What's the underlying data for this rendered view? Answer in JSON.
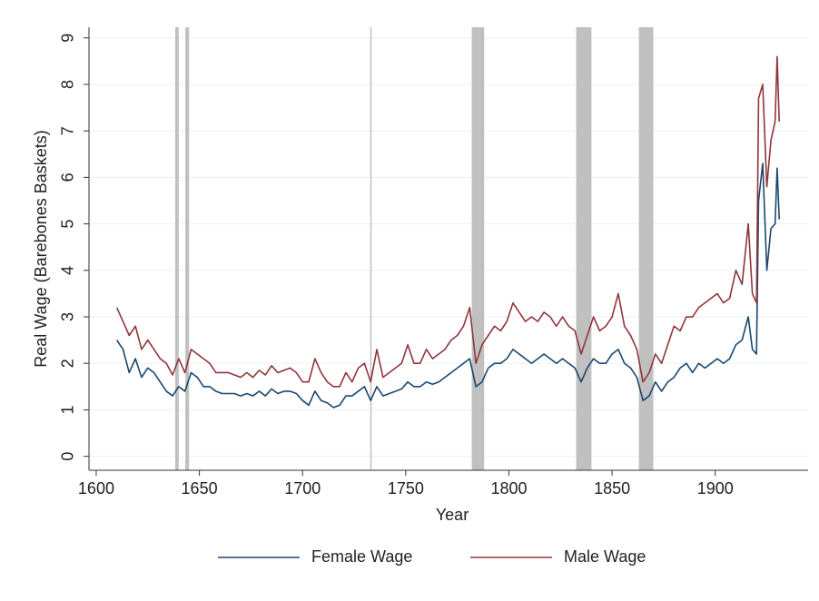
{
  "chart_data": {
    "type": "line",
    "xlabel": "Year",
    "ylabel": "Real Wage (Barebones Baskets)",
    "x": [
      1610,
      1613,
      1616,
      1619,
      1622,
      1625,
      1628,
      1631,
      1634,
      1637,
      1640,
      1643,
      1646,
      1649,
      1652,
      1655,
      1658,
      1661,
      1664,
      1667,
      1670,
      1673,
      1676,
      1679,
      1682,
      1685,
      1688,
      1691,
      1694,
      1697,
      1700,
      1703,
      1706,
      1709,
      1712,
      1715,
      1718,
      1721,
      1724,
      1727,
      1730,
      1733,
      1736,
      1739,
      1742,
      1745,
      1748,
      1751,
      1754,
      1757,
      1760,
      1763,
      1766,
      1769,
      1772,
      1775,
      1778,
      1781,
      1784,
      1787,
      1790,
      1793,
      1796,
      1799,
      1802,
      1805,
      1808,
      1811,
      1814,
      1817,
      1820,
      1823,
      1826,
      1829,
      1832,
      1835,
      1838,
      1841,
      1844,
      1847,
      1850,
      1853,
      1856,
      1859,
      1862,
      1865,
      1868,
      1871,
      1874,
      1877,
      1880,
      1883,
      1886,
      1889,
      1892,
      1895,
      1898,
      1901,
      1904,
      1907,
      1910,
      1913,
      1916,
      1918,
      1920,
      1921,
      1923,
      1925,
      1927,
      1929,
      1930,
      1931
    ],
    "series": [
      {
        "name": "Female Wage",
        "color": "#1a476f",
        "values": [
          2.5,
          2.3,
          1.8,
          2.1,
          1.7,
          1.9,
          1.8,
          1.6,
          1.4,
          1.3,
          1.5,
          1.4,
          1.8,
          1.7,
          1.5,
          1.5,
          1.4,
          1.35,
          1.35,
          1.35,
          1.3,
          1.35,
          1.3,
          1.4,
          1.3,
          1.45,
          1.35,
          1.4,
          1.4,
          1.35,
          1.2,
          1.1,
          1.4,
          1.2,
          1.15,
          1.05,
          1.1,
          1.3,
          1.3,
          1.4,
          1.5,
          1.2,
          1.5,
          1.3,
          1.35,
          1.4,
          1.45,
          1.6,
          1.5,
          1.5,
          1.6,
          1.55,
          1.6,
          1.7,
          1.8,
          1.9,
          2.0,
          2.1,
          1.5,
          1.6,
          1.9,
          2.0,
          2.0,
          2.1,
          2.3,
          2.2,
          2.1,
          2.0,
          2.1,
          2.2,
          2.1,
          2.0,
          2.1,
          2.0,
          1.9,
          1.6,
          1.9,
          2.1,
          2.0,
          2.0,
          2.2,
          2.3,
          2.0,
          1.9,
          1.7,
          1.2,
          1.3,
          1.6,
          1.4,
          1.6,
          1.7,
          1.9,
          2.0,
          1.8,
          2.0,
          1.9,
          2.0,
          2.1,
          2.0,
          2.1,
          2.4,
          2.5,
          3.0,
          2.3,
          2.2,
          5.5,
          6.3,
          4.0,
          4.9,
          5.0,
          6.2,
          5.1
        ]
      },
      {
        "name": "Male Wage",
        "color": "#90353b",
        "values": [
          3.2,
          2.9,
          2.6,
          2.8,
          2.3,
          2.5,
          2.3,
          2.1,
          2.0,
          1.75,
          2.1,
          1.8,
          2.3,
          2.2,
          2.1,
          2.0,
          1.8,
          1.8,
          1.8,
          1.75,
          1.7,
          1.8,
          1.7,
          1.85,
          1.75,
          1.95,
          1.8,
          1.85,
          1.9,
          1.8,
          1.6,
          1.6,
          2.1,
          1.8,
          1.6,
          1.5,
          1.5,
          1.8,
          1.6,
          1.9,
          2.0,
          1.6,
          2.3,
          1.7,
          1.8,
          1.9,
          2.0,
          2.4,
          2.0,
          2.0,
          2.3,
          2.1,
          2.2,
          2.3,
          2.5,
          2.6,
          2.8,
          3.2,
          2.0,
          2.4,
          2.6,
          2.8,
          2.7,
          2.9,
          3.3,
          3.1,
          2.9,
          3.0,
          2.9,
          3.1,
          3.0,
          2.8,
          3.0,
          2.8,
          2.7,
          2.2,
          2.6,
          3.0,
          2.7,
          2.8,
          3.0,
          3.5,
          2.8,
          2.6,
          2.3,
          1.6,
          1.8,
          2.2,
          2.0,
          2.4,
          2.8,
          2.7,
          3.0,
          3.0,
          3.2,
          3.3,
          3.4,
          3.5,
          3.3,
          3.4,
          4.0,
          3.7,
          5.0,
          3.5,
          3.3,
          7.7,
          8.0,
          5.8,
          6.8,
          7.2,
          8.6,
          7.2
        ]
      }
    ],
    "shaded_periods": [
      [
        1638.3,
        1640
      ],
      [
        1643.2,
        1645
      ],
      [
        1732.8,
        1733.4
      ],
      [
        1782,
        1788
      ],
      [
        1832.6,
        1840
      ],
      [
        1863,
        1870
      ]
    ],
    "shade_color": "#c0c0c0",
    "xlim": [
      1596.5,
      1945
    ],
    "xticks": [
      1600,
      1650,
      1700,
      1750,
      1800,
      1850,
      1900
    ],
    "ylim": [
      -0.3,
      9.23
    ],
    "yticks": [
      0,
      1,
      2,
      3,
      4,
      5,
      6,
      7,
      8,
      9
    ],
    "grid": true,
    "legend": "bottom"
  }
}
